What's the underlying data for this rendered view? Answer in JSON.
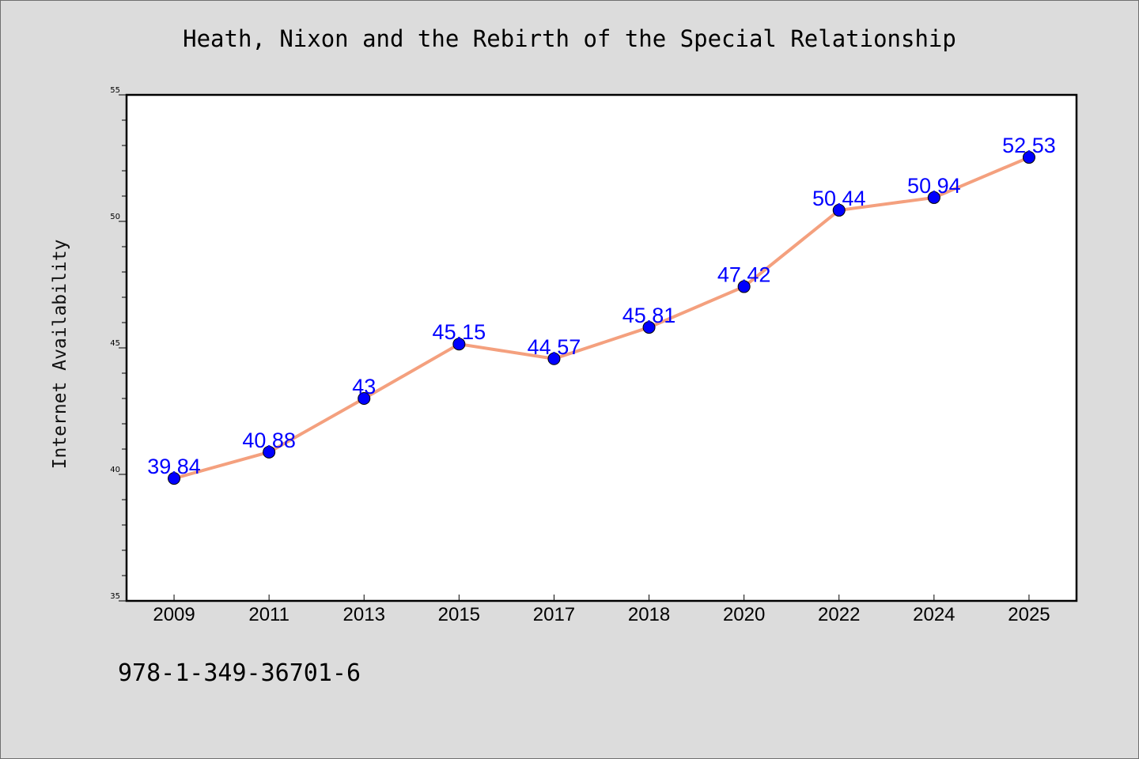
{
  "title": "Heath, Nixon and the Rebirth of the Special Relationship",
  "footer_text": "978-1-349-36701-6",
  "colors": {
    "background": "#dcdcdc",
    "plot_background": "#ffffff",
    "line": "#f4a07e",
    "marker": "#0000ff",
    "label": "#0000ff"
  },
  "chart_data": {
    "type": "line",
    "title": "Heath, Nixon and the Rebirth of the Special Relationship",
    "xlabel": "",
    "ylabel": "Internet Availability",
    "categories": [
      "2009",
      "2011",
      "2013",
      "2015",
      "2017",
      "2018",
      "2020",
      "2022",
      "2024",
      "2025"
    ],
    "series": [
      {
        "values": [
          39.84,
          40.88,
          43,
          45.15,
          44.57,
          45.81,
          47.42,
          50.44,
          50.94,
          52.53
        ],
        "labels": [
          "39.84",
          "40.88",
          "43",
          "45.15",
          "44.57",
          "45.81",
          "47.42",
          "50.44",
          "50.94",
          "52.53"
        ]
      }
    ],
    "ylim": [
      35,
      55
    ],
    "yticks": [
      35,
      40,
      45,
      50,
      55
    ],
    "grid": false,
    "legend": "none"
  }
}
